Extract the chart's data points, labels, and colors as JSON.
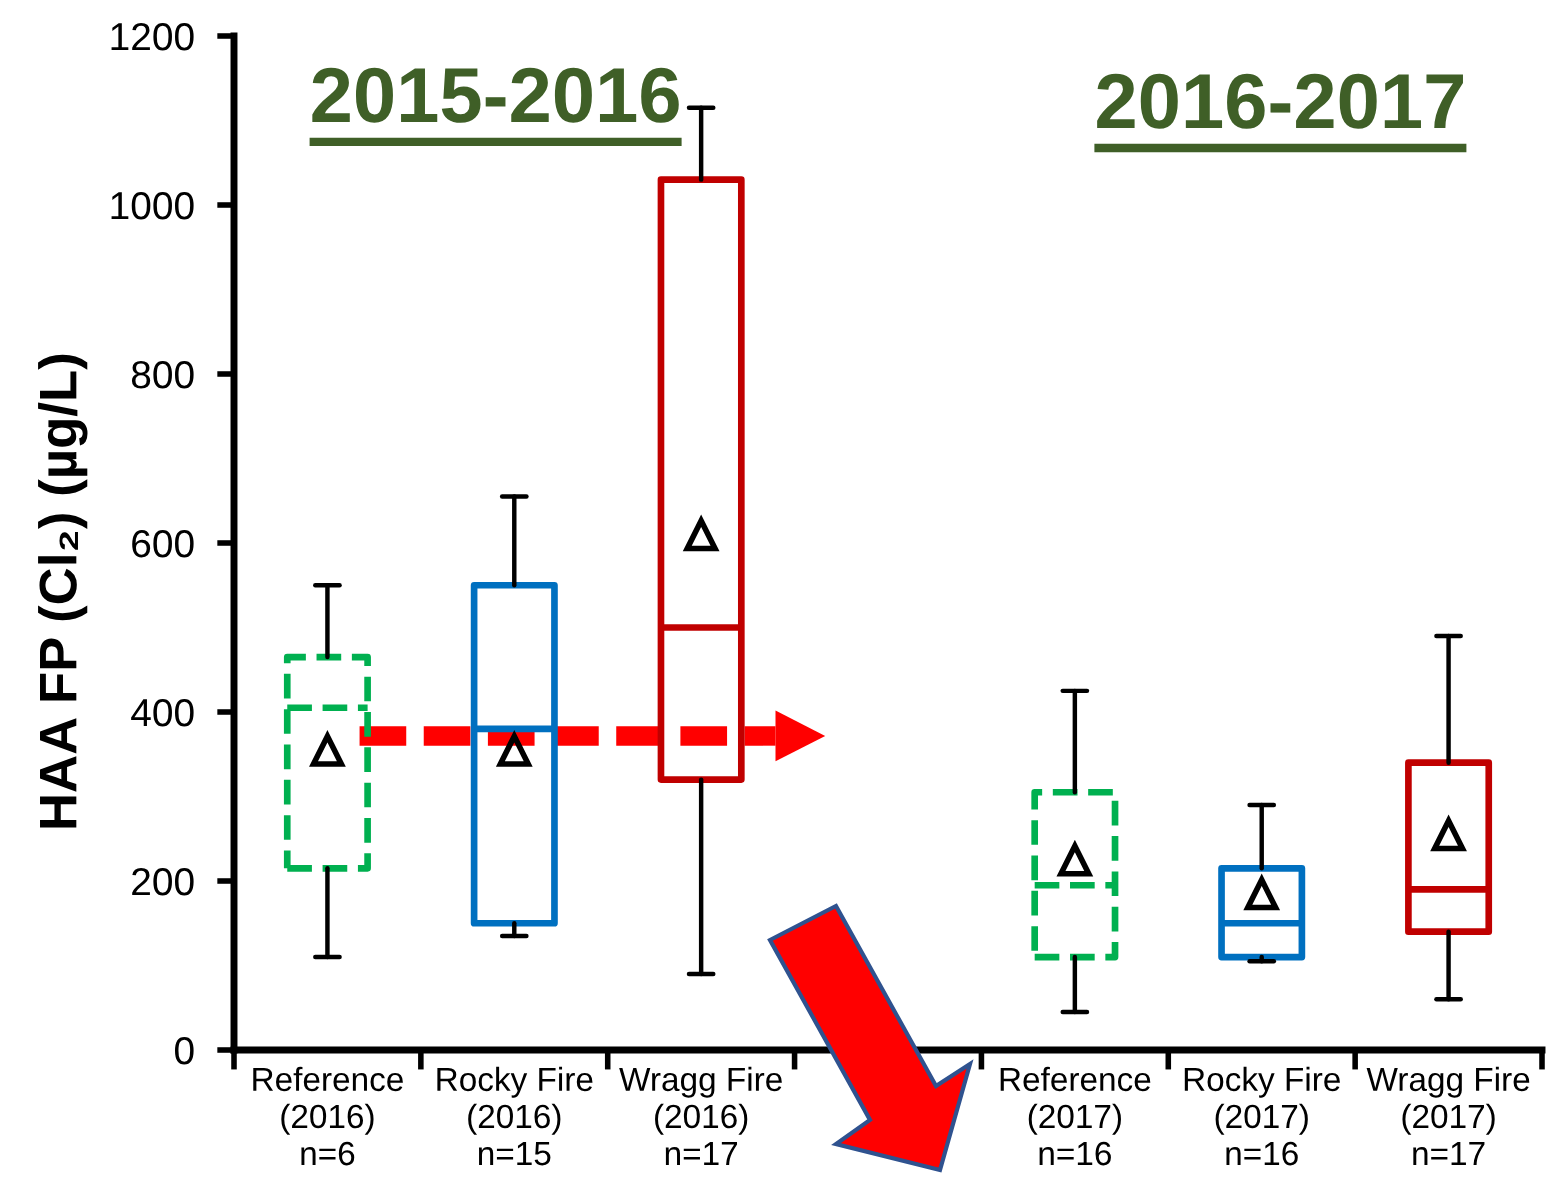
{
  "chart_data": {
    "type": "box",
    "ylabel": "HAA FP (Cl₂) (µg/L)",
    "categories": [
      "Reference\n(2016)\nn=6",
      "Rocky Fire\n(2016)\nn=15",
      "Wragg Fire\n(2016)\nn=17",
      null,
      "Reference\n(2017)\nn=16",
      "Rocky Fire\n(2017)\nn=16",
      "Wragg Fire\n(2017)\nn=17"
    ],
    "series": [
      {
        "color": "#00b050",
        "line_style": "dashed",
        "boxes": [
          {
            "low": 110,
            "q1": 215,
            "median": 405,
            "q3": 465,
            "high": 550,
            "mean": 355
          },
          null,
          null,
          null,
          {
            "low": 45,
            "q1": 110,
            "median": 195,
            "q3": 305,
            "high": 425,
            "mean": 225
          },
          null,
          null
        ]
      },
      {
        "color": "#0070c0",
        "boxes": [
          null,
          {
            "low": 135,
            "q1": 150,
            "median": 380,
            "q3": 550,
            "high": 655,
            "mean": 355
          },
          null,
          null,
          null,
          {
            "low": 105,
            "q1": 110,
            "median": 150,
            "q3": 215,
            "high": 290,
            "mean": 185
          },
          null
        ]
      },
      {
        "color": "#c00000",
        "boxes": [
          null,
          null,
          {
            "low": 90,
            "q1": 320,
            "median": 500,
            "q3": 1030,
            "high": 1115,
            "mean": 610
          },
          null,
          null,
          null,
          {
            "low": 60,
            "q1": 140,
            "median": 190,
            "q3": 340,
            "high": 490,
            "mean": 255
          }
        ]
      }
    ],
    "ylim": [
      0,
      1200
    ],
    "yticks": [
      0,
      200,
      400,
      600,
      800,
      1000,
      1200
    ],
    "marker": "triangle",
    "annotations": [
      "2015-2016",
      "2016-2017"
    ]
  }
}
